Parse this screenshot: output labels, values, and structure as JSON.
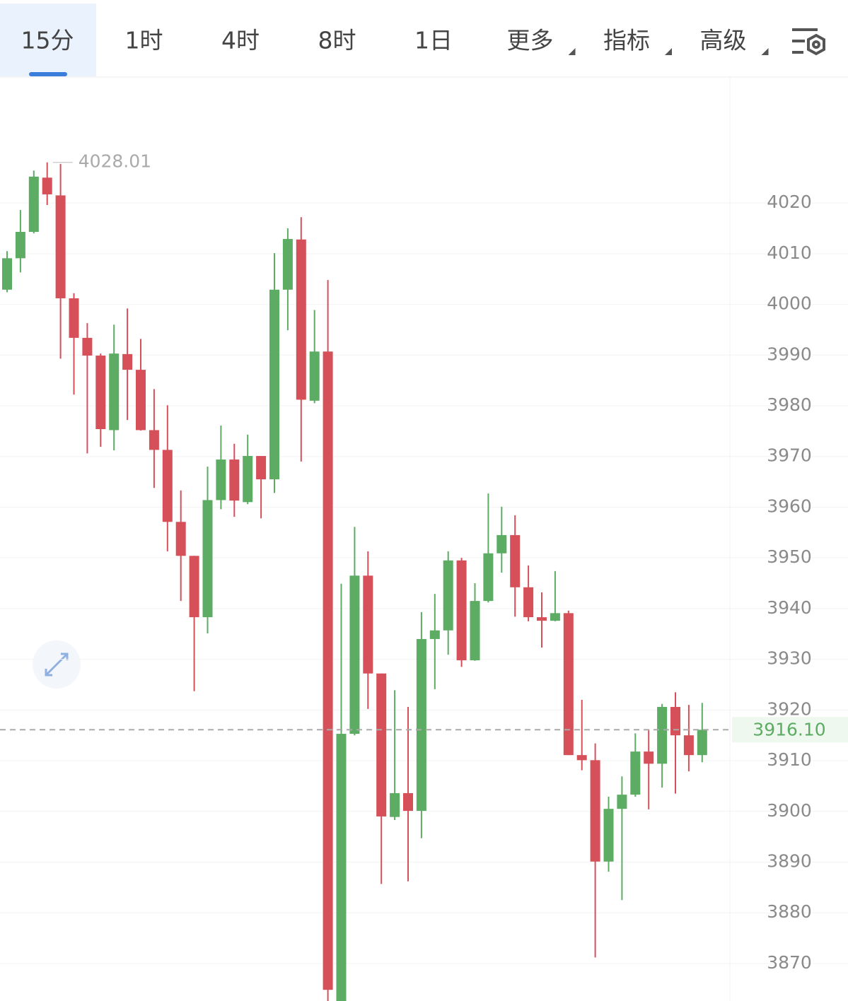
{
  "tabs": [
    "15分",
    "1时",
    "4时",
    "8时",
    "1日",
    "更多",
    "指标",
    "高级"
  ],
  "chart_data": {
    "type": "candlestick",
    "up_color": "#5cac63",
    "down_color": "#d6505a",
    "open": [
      4002.9,
      4009.1,
      4014.3,
      4025.0,
      4021.5,
      4001.2,
      3993.4,
      3989.9,
      3975.2,
      3990.2,
      3987.1,
      3975.2,
      3971.3,
      3957.1,
      3950.4,
      3938.3,
      3961.4,
      3969.4,
      3961.0,
      3970.1,
      3965.5,
      4002.9,
      4012.8,
      3981.0,
      3990.7,
      3862.6,
      3915.3,
      3946.5,
      3927.2,
      3898.9,
      3903.6,
      3900.1,
      3934.0,
      3935.7,
      3949.5,
      3929.8,
      3941.5,
      3950.9,
      3954.5,
      3944.2,
      3938.3,
      3937.6,
      3939.1,
      3911.1,
      3910.1,
      3890.1,
      3900.5,
      3903.3,
      3911.8,
      3909.4,
      3920.6,
      3915.0,
      3911.1
    ],
    "high": [
      4010.5,
      4018.6,
      4026.4,
      4028.01,
      4027.7,
      4002.2,
      3996.3,
      3990.3,
      3996.0,
      3999.2,
      3993.2,
      3983.3,
      3980.1,
      3963.3,
      3950.4,
      3968.0,
      3976.1,
      3972.5,
      3974.3,
      3970.1,
      4010.1,
      4015.0,
      4017.2,
      3998.9,
      4004.8,
      3944.9,
      3956.1,
      3951.3,
      3927.2,
      3923.9,
      3920.6,
      3939.3,
      3942.9,
      3951.3,
      3950.0,
      3945.0,
      3962.7,
      3960.1,
      3958.4,
      3948.5,
      3943.2,
      3947.4,
      3939.6,
      3922.0,
      3913.4,
      3902.9,
      3906.9,
      3915.4,
      3916.1,
      3921.2,
      3923.5,
      3921.0,
      3921.4
    ],
    "low": [
      4002.4,
      4006.3,
      4014.0,
      4019.6,
      3989.3,
      3982.2,
      3970.6,
      3971.9,
      3971.2,
      3977.2,
      3975.1,
      3963.8,
      3951.3,
      3941.5,
      3923.7,
      3935.1,
      3959.6,
      3958.1,
      3960.6,
      3957.8,
      3962.8,
      3994.9,
      3969.0,
      3980.5,
      3862.6,
      3862.6,
      3915.0,
      3920.2,
      3885.7,
      3898.3,
      3886.2,
      3894.7,
      3924.1,
      3930.9,
      3928.5,
      3929.7,
      3941.2,
      3947.1,
      3938.4,
      3937.5,
      3932.3,
      3937.5,
      3911.1,
      3908.1,
      3871.2,
      3888.1,
      3882.5,
      3902.9,
      3900.4,
      3904.7,
      3903.5,
      3907.9,
      3909.7
    ],
    "close": [
      4009.1,
      4014.3,
      4025.2,
      4021.7,
      4001.2,
      3993.4,
      3989.9,
      3975.4,
      3990.3,
      3987.1,
      3975.2,
      3971.3,
      3957.1,
      3950.4,
      3938.3,
      3961.4,
      3969.4,
      3961.3,
      3970.1,
      3965.5,
      4002.9,
      4012.9,
      3981.2,
      3990.7,
      3864.8,
      3915.3,
      3946.5,
      3927.2,
      3899.0,
      3903.6,
      3900.1,
      3934.0,
      3935.7,
      3949.5,
      3929.8,
      3941.5,
      3950.9,
      3954.5,
      3944.2,
      3938.3,
      3937.6,
      3939.1,
      3911.1,
      3910.1,
      3890.1,
      3900.5,
      3903.3,
      3911.8,
      3909.4,
      3920.6,
      3915.0,
      3911.1,
      3916.1
    ],
    "ylim": [
      3862.6,
      4044.7
    ],
    "yticks": [
      3870,
      3880,
      3890,
      3900,
      3910,
      3920,
      3930,
      3940,
      3950,
      3960,
      3970,
      3980,
      3990,
      4000,
      4010,
      4020
    ],
    "last_price": {
      "value": 3916.1,
      "label": "3916.10"
    },
    "grid": true
  }
}
